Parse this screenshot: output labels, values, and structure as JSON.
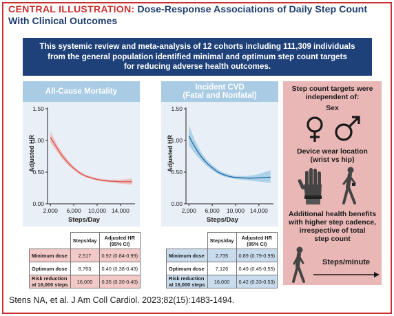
{
  "title": {
    "lead": "CENTRAL ILLUSTRATION:",
    "rest_line1": " Dose-Response Associations of Daily Step Count",
    "line2": "With Clinical Outcomes"
  },
  "banner": {
    "line1": "This systemic review and meta-analysis of 12 cohorts including 111,309 individuals",
    "line2": "from the general population identified minimal and optimum step count targets",
    "line3": "for reducing adverse health outcomes."
  },
  "panels": [
    {
      "title_lines": [
        "All-Cause Mortality"
      ],
      "ylabel": "Adjusted HR",
      "xlabel": "Steps/Day",
      "yticks": [
        "0.00",
        "0.50",
        "1.00",
        "1.50"
      ],
      "xticks": [
        "2,000",
        "6,000",
        "10,000",
        "14,000"
      ],
      "table": {
        "headers": [
          "",
          "Steps/day",
          "Adjusted HR (95% CI)"
        ],
        "rows": [
          {
            "label": "Minimum dose",
            "steps": "2,517",
            "hr": "0.92 (0.84-0.99)"
          },
          {
            "label": "Optimum dose",
            "steps": "8,763",
            "hr": "0.40 (0.38-0.43)"
          },
          {
            "label": "Risk reduction at 16,000 steps",
            "label1": "Risk reduction",
            "label2": "at 16,000 steps",
            "steps": "16,000",
            "hr": "0.35 (0.30-0.40)"
          }
        ]
      }
    },
    {
      "title_lines": [
        "Incident CVD",
        "(Fatal and Nonfatal)"
      ],
      "ylabel": "Adjusted HR",
      "xlabel": "Steps/Day",
      "yticks": [
        "0.00",
        "0.50",
        "1.00",
        "1.50"
      ],
      "xticks": [
        "2,000",
        "6,000",
        "10,000",
        "14,000"
      ],
      "table": {
        "headers": [
          "",
          "Steps/day",
          "Adjusted HR (95% CI)"
        ],
        "rows": [
          {
            "label": "Minimum dose",
            "steps": "2,735",
            "hr": "0.89 (0.79-0.99)"
          },
          {
            "label": "Optimum dose",
            "steps": "7,126",
            "hr": "0.49 (0.45-0.55)"
          },
          {
            "label": "Risk reduction at 16,000 steps",
            "label1": "Risk reduction",
            "label2": "at 16,000 steps",
            "steps": "16,000",
            "hr": "0.42 (0.33-0.53)"
          }
        ]
      }
    }
  ],
  "chart_data": [
    {
      "type": "line",
      "title": "All-Cause Mortality",
      "xlabel": "Steps/Day",
      "ylabel": "Adjusted HR",
      "xlim": [
        1500,
        16500
      ],
      "ylim": [
        0,
        1.5
      ],
      "color": "#d9534f",
      "band_color": "#f0a8a4",
      "x": [
        2000,
        3000,
        4000,
        5000,
        6000,
        7000,
        8000,
        9000,
        10000,
        11000,
        12000,
        13000,
        14000,
        15000,
        16000
      ],
      "y": [
        1.05,
        0.9,
        0.76,
        0.65,
        0.56,
        0.49,
        0.44,
        0.41,
        0.385,
        0.37,
        0.36,
        0.355,
        0.35,
        0.35,
        0.35
      ],
      "lower": [
        0.97,
        0.84,
        0.71,
        0.61,
        0.53,
        0.465,
        0.42,
        0.39,
        0.365,
        0.35,
        0.34,
        0.33,
        0.32,
        0.31,
        0.3
      ],
      "upper": [
        1.14,
        0.96,
        0.81,
        0.69,
        0.59,
        0.515,
        0.46,
        0.43,
        0.405,
        0.39,
        0.38,
        0.38,
        0.38,
        0.39,
        0.4
      ]
    },
    {
      "type": "line",
      "title": "Incident CVD (Fatal and Nonfatal)",
      "xlabel": "Steps/Day",
      "ylabel": "Adjusted HR",
      "xlim": [
        1500,
        16500
      ],
      "ylim": [
        0,
        1.5
      ],
      "color": "#1f6fa8",
      "band_color": "#8fc0e0",
      "x": [
        2000,
        3000,
        4000,
        5000,
        6000,
        7000,
        8000,
        9000,
        10000,
        11000,
        12000,
        13000,
        14000,
        15000,
        16000
      ],
      "y": [
        1.07,
        0.9,
        0.76,
        0.65,
        0.57,
        0.5,
        0.46,
        0.43,
        0.415,
        0.41,
        0.405,
        0.405,
        0.41,
        0.415,
        0.42
      ],
      "lower": [
        0.92,
        0.8,
        0.69,
        0.6,
        0.53,
        0.47,
        0.43,
        0.41,
        0.39,
        0.38,
        0.37,
        0.36,
        0.35,
        0.34,
        0.33
      ],
      "upper": [
        1.24,
        1.01,
        0.83,
        0.7,
        0.61,
        0.54,
        0.49,
        0.46,
        0.44,
        0.44,
        0.44,
        0.45,
        0.47,
        0.5,
        0.53
      ]
    }
  ],
  "right_panel": {
    "heading_lines": [
      "Step count targets were",
      "independent of:"
    ],
    "sex_label": "Sex",
    "device_lines": [
      "Device wear location",
      "(wrist vs hip)"
    ],
    "benefit_lines": [
      "Additional health benefits",
      "with higher step cadence,",
      "irrespective of total",
      "step count"
    ],
    "cadence_label": "Steps/minute",
    "icons": [
      "female-symbol-icon",
      "male-symbol-icon",
      "hand-icon",
      "walking-person-icon"
    ]
  },
  "citation": "Stens NA, et al. J Am Coll Cardiol. 2023;82(15):1483-1494.",
  "colors": {
    "frame": "#c8312f",
    "banner": "#1f4179",
    "panel_head": "#a9cbe4",
    "right_panel": "#e9b7b5",
    "mortality_table_band": "#f2c9c7",
    "cvd_table_band": "#c9dcee"
  }
}
